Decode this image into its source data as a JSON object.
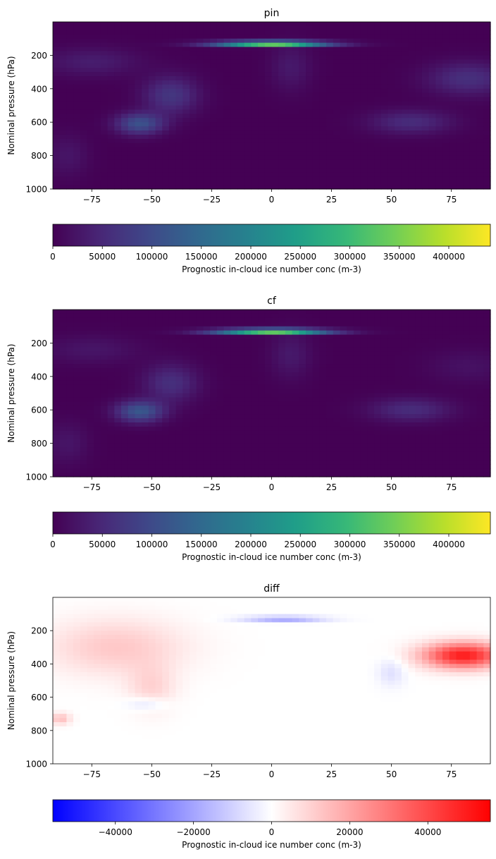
{
  "chart_data": [
    {
      "type": "heatmap",
      "title": "pin",
      "ylabel": "Nominal pressure (hPa)",
      "xlabel": "",
      "x_ticks": [
        -75,
        -50,
        -25,
        0,
        25,
        50,
        75
      ],
      "y_ticks": [
        200,
        400,
        600,
        800,
        1000
      ],
      "xlim": [
        -91.25,
        91.25
      ],
      "ylim": [
        1000,
        0
      ],
      "colormap": "viridis",
      "colorbar": {
        "label": "Prognostic in-cloud ice number conc (m-3)",
        "orientation": "horizontal",
        "range": [
          0,
          442000
        ],
        "ticks": [
          0,
          50000,
          100000,
          150000,
          200000,
          250000,
          300000,
          350000,
          400000
        ]
      },
      "features": [
        {
          "lat": 0,
          "p": 130,
          "dlat": 16,
          "dp": 10,
          "value": 430000
        },
        {
          "lat": -55,
          "p": 610,
          "dlat": 7,
          "dp": 45,
          "value": 110000
        },
        {
          "lat": -42,
          "p": 440,
          "dlat": 8,
          "dp": 80,
          "value": 70000
        },
        {
          "lat": -75,
          "p": 240,
          "dlat": 14,
          "dp": 60,
          "value": 35000
        },
        {
          "lat": 58,
          "p": 600,
          "dlat": 12,
          "dp": 50,
          "value": 55000
        },
        {
          "lat": 82,
          "p": 340,
          "dlat": 12,
          "dp": 70,
          "value": 60000
        },
        {
          "lat": 8,
          "p": 270,
          "dlat": 6,
          "dp": 100,
          "value": 30000
        },
        {
          "lat": -85,
          "p": 800,
          "dlat": 6,
          "dp": 90,
          "value": 25000
        }
      ]
    },
    {
      "type": "heatmap",
      "title": "cf",
      "ylabel": "Nominal pressure (hPa)",
      "xlabel": "",
      "x_ticks": [
        -75,
        -50,
        -25,
        0,
        25,
        50,
        75
      ],
      "y_ticks": [
        200,
        400,
        600,
        800,
        1000
      ],
      "xlim": [
        -91.25,
        91.25
      ],
      "ylim": [
        1000,
        0
      ],
      "colormap": "viridis",
      "colorbar": {
        "label": "Prognostic in-cloud ice number conc (m-3)",
        "orientation": "horizontal",
        "range": [
          0,
          442000
        ],
        "ticks": [
          0,
          50000,
          100000,
          150000,
          200000,
          250000,
          300000,
          350000,
          400000
        ]
      },
      "features": [
        {
          "lat": 0,
          "p": 130,
          "dlat": 16,
          "dp": 10,
          "value": 430000
        },
        {
          "lat": -55,
          "p": 610,
          "dlat": 7,
          "dp": 45,
          "value": 120000
        },
        {
          "lat": -42,
          "p": 440,
          "dlat": 8,
          "dp": 80,
          "value": 60000
        },
        {
          "lat": -75,
          "p": 240,
          "dlat": 14,
          "dp": 60,
          "value": 25000
        },
        {
          "lat": 58,
          "p": 600,
          "dlat": 12,
          "dp": 50,
          "value": 55000
        },
        {
          "lat": 82,
          "p": 340,
          "dlat": 12,
          "dp": 70,
          "value": 20000
        },
        {
          "lat": 8,
          "p": 270,
          "dlat": 6,
          "dp": 100,
          "value": 30000
        },
        {
          "lat": -85,
          "p": 800,
          "dlat": 6,
          "dp": 90,
          "value": 25000
        }
      ]
    },
    {
      "type": "heatmap",
      "title": "diff",
      "ylabel": "Nominal pressure (hPa)",
      "xlabel": "",
      "x_ticks": [
        -75,
        -50,
        -25,
        0,
        25,
        50,
        75
      ],
      "y_ticks": [
        200,
        400,
        600,
        800,
        1000
      ],
      "xlim": [
        -91.25,
        91.25
      ],
      "ylim": [
        1000,
        0
      ],
      "colormap": "bwr",
      "colorbar": {
        "label": "Prognostic in-cloud ice number conc (m-3)",
        "orientation": "horizontal",
        "range": [
          -56000,
          56000
        ],
        "ticks": [
          -40000,
          -20000,
          0,
          20000,
          40000
        ]
      },
      "features": [
        {
          "lat": 80,
          "p": 350,
          "dlat": 12,
          "dp": 55,
          "value": 50000
        },
        {
          "lat": -65,
          "p": 300,
          "dlat": 20,
          "dp": 120,
          "value": 12000
        },
        {
          "lat": -50,
          "p": 550,
          "dlat": 7,
          "dp": 100,
          "value": 9000
        },
        {
          "lat": 5,
          "p": 130,
          "dlat": 12,
          "dp": 12,
          "value": -22000
        },
        {
          "lat": -52,
          "p": 640,
          "dlat": 6,
          "dp": 30,
          "value": -9000
        },
        {
          "lat": -88,
          "p": 730,
          "dlat": 3,
          "dp": 25,
          "value": 14000
        },
        {
          "lat": 50,
          "p": 450,
          "dlat": 4,
          "dp": 60,
          "value": -7000
        }
      ]
    }
  ]
}
